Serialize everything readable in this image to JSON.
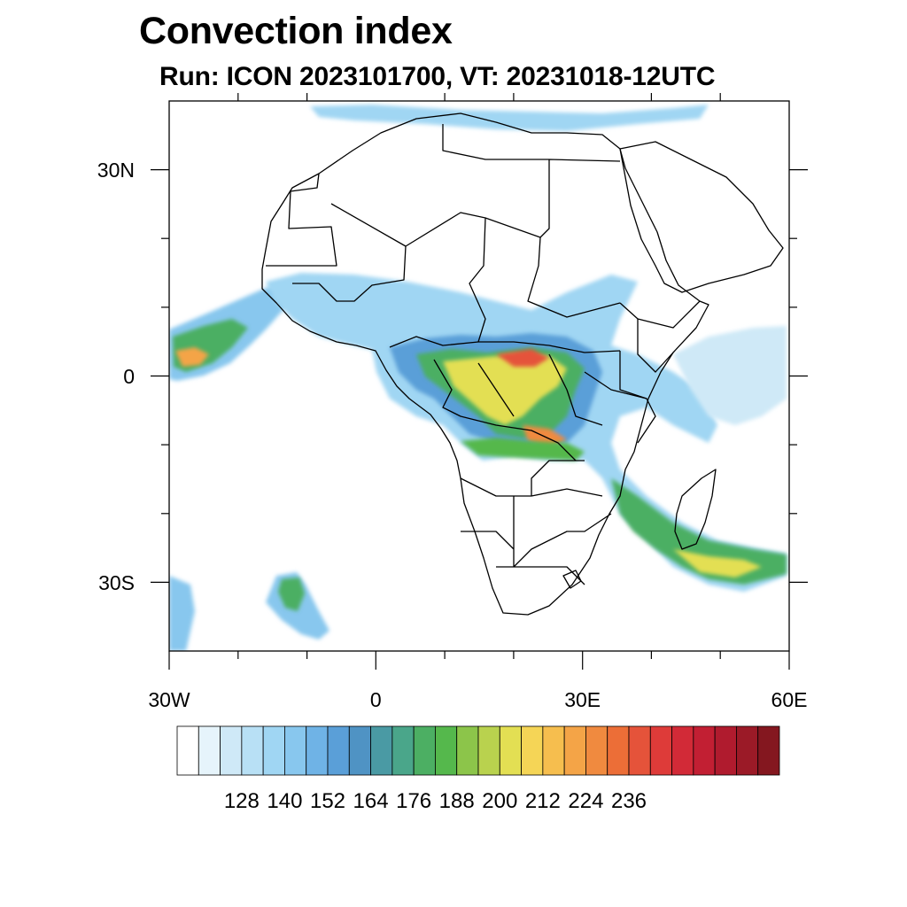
{
  "header": {
    "title": "Convection index",
    "subtitle": "Run: ICON 2023101700,  VT: 20231018-12UTC"
  },
  "map": {
    "lon_range": [
      -30,
      60
    ],
    "lat_range": [
      -40,
      40
    ],
    "x_ticks": [
      {
        "label": "30W",
        "lon": -30
      },
      {
        "label": "0",
        "lon": 0
      },
      {
        "label": "30E",
        "lon": 30
      },
      {
        "label": "60E",
        "lon": 60
      }
    ],
    "y_ticks": [
      {
        "label": "30N",
        "lat": 30
      },
      {
        "label": "0",
        "lat": 0
      },
      {
        "label": "30S",
        "lat": -30
      }
    ],
    "land_color": "#ffffff",
    "border_color": "#000000"
  },
  "colorbar": {
    "labels": [
      "128",
      "140",
      "152",
      "164",
      "176",
      "188",
      "200",
      "212",
      "224",
      "236"
    ],
    "colors": [
      "#ffffff",
      "#e6f4fb",
      "#cfe9f7",
      "#b8e0f5",
      "#a0d6f3",
      "#88c7ee",
      "#6fb3e6",
      "#5a9fd8",
      "#4f93c4",
      "#4a9aa4",
      "#4aa68a",
      "#4caf63",
      "#55b84c",
      "#8cc54a",
      "#b9d24e",
      "#e3df53",
      "#f5d556",
      "#f6be4e",
      "#f4a447",
      "#f08a3f",
      "#ec6e37",
      "#e5533a",
      "#de3b39",
      "#d22a37",
      "#c21f33",
      "#b01b2e",
      "#9b1a27",
      "#84171f"
    ]
  }
}
